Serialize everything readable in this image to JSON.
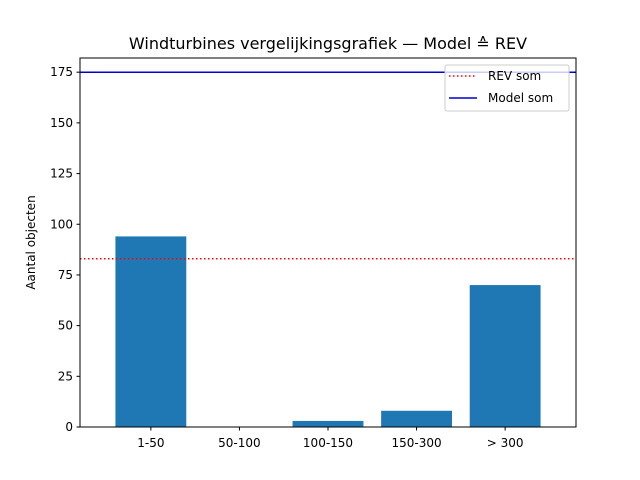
{
  "chart_data": {
    "type": "bar",
    "title": "Windturbines vergelijkingsgrafiek — Model ≙ REV",
    "xlabel": "",
    "ylabel": "Aantal objecten",
    "categories": [
      "1-50",
      "50-100",
      "100-150",
      "150-300",
      "> 300"
    ],
    "values": [
      94,
      0,
      3,
      8,
      70
    ],
    "bar_color": "#1f77b4",
    "ylim": [
      0,
      182
    ],
    "yticks": [
      0,
      25,
      50,
      75,
      100,
      125,
      150,
      175
    ],
    "ytick_labels": [
      "0",
      "25",
      "50",
      "75",
      "100",
      "125",
      "150",
      "175"
    ],
    "reference_lines": [
      {
        "name": "REV som",
        "value": 83,
        "color": "#ff0000",
        "style": "dotted"
      },
      {
        "name": "Model som",
        "value": 175,
        "color": "#0000cd",
        "style": "solid"
      }
    ],
    "legend": {
      "placement": "top-right",
      "entries": [
        "REV som",
        "Model som"
      ]
    },
    "grid": false
  }
}
